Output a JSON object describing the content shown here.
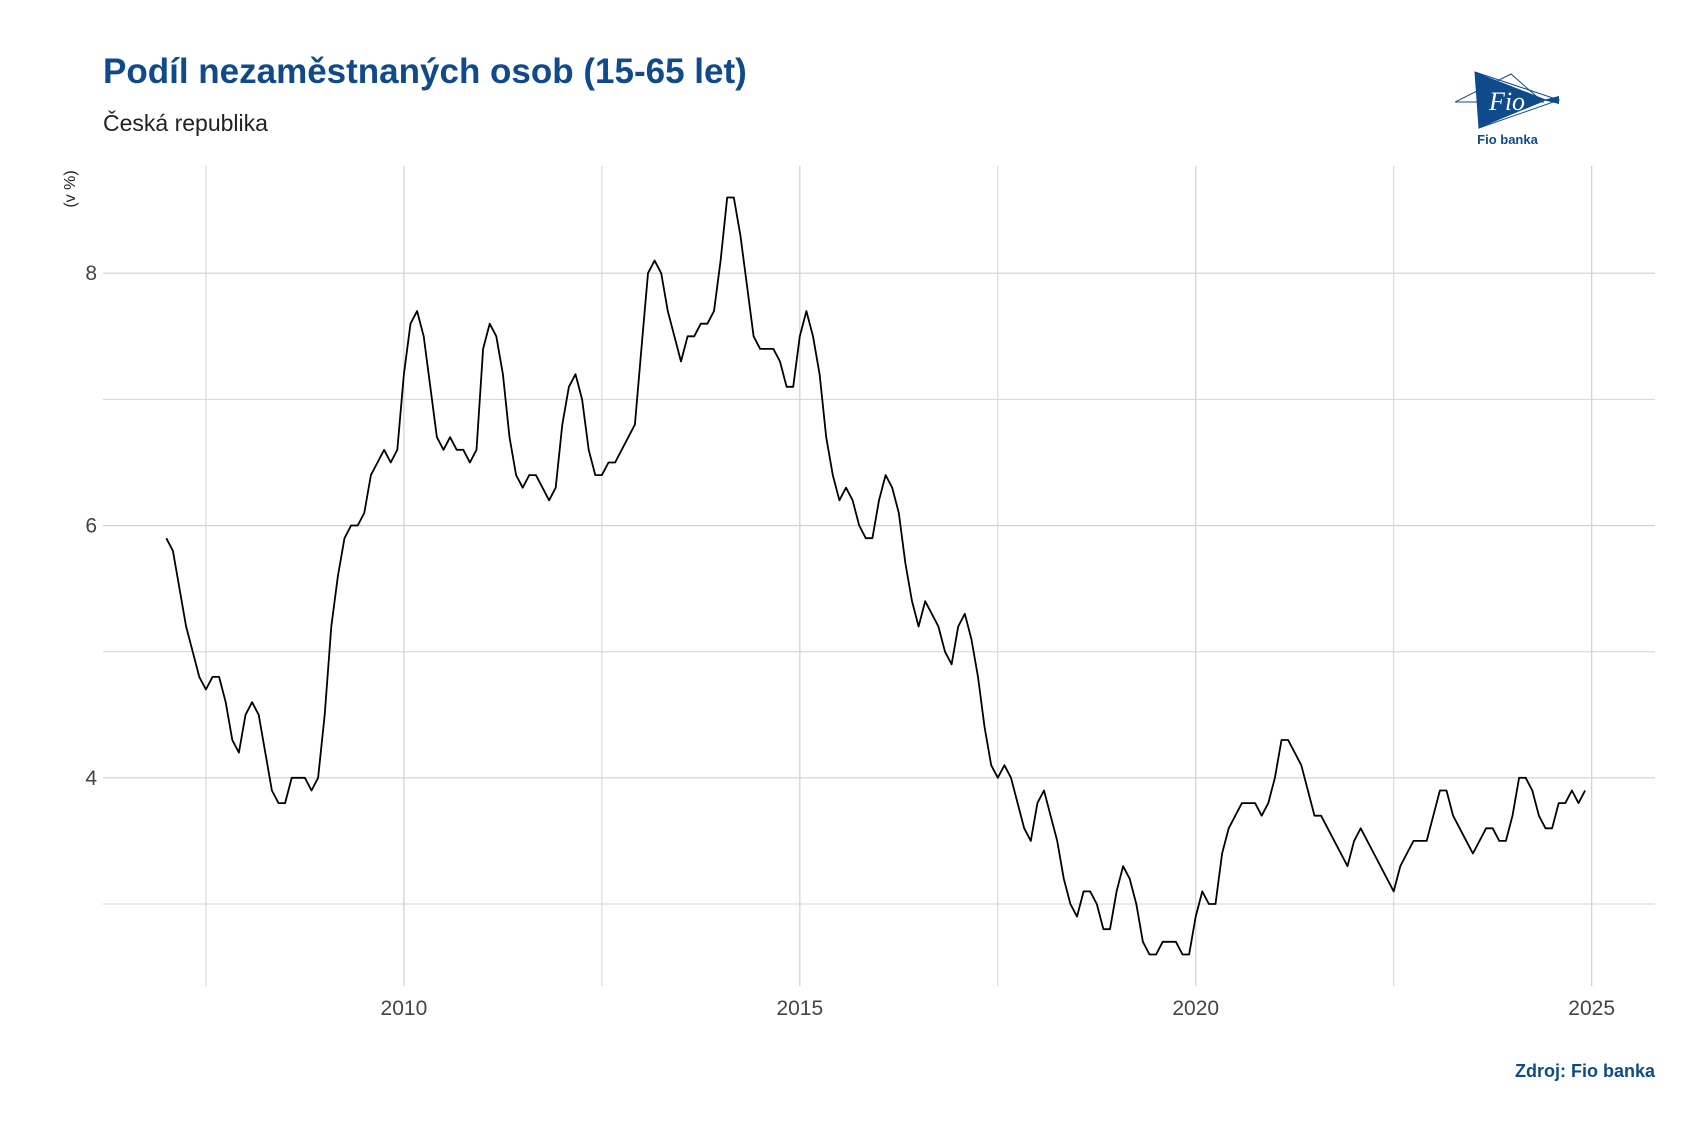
{
  "header": {
    "title": "Podíl nezaměstnaných osob (15-65 let)",
    "subtitle": "Česká republika"
  },
  "logo": {
    "mark_text": "Fio",
    "name": "Fio banka",
    "color": "#0f4a8a"
  },
  "footer": {
    "source": "Zdroj: Fio banka"
  },
  "chart_data": {
    "type": "line",
    "title": "Podíl nezaměstnaných osob (15-65 let)",
    "subtitle": "Česká republika",
    "xlabel": "",
    "ylabel": "(v %)",
    "xlim": [
      2006.2,
      2025.8
    ],
    "ylim": [
      2.35,
      8.85
    ],
    "x_ticks": [
      2010,
      2015,
      2020,
      2025
    ],
    "y_ticks": [
      4,
      6,
      8
    ],
    "grid": true,
    "line_color": "#000000",
    "series": [
      {
        "start_year": 2007.0,
        "step_months": 1,
        "values": [
          5.9,
          5.8,
          5.5,
          5.2,
          5.0,
          4.8,
          4.7,
          4.8,
          4.8,
          4.6,
          4.3,
          4.2,
          4.5,
          4.6,
          4.5,
          4.2,
          3.9,
          3.8,
          3.8,
          4.0,
          4.0,
          4.0,
          3.9,
          4.0,
          4.5,
          5.2,
          5.6,
          5.9,
          6.0,
          6.0,
          6.1,
          6.4,
          6.5,
          6.6,
          6.5,
          6.6,
          7.2,
          7.6,
          7.7,
          7.5,
          7.1,
          6.7,
          6.6,
          6.7,
          6.6,
          6.6,
          6.5,
          6.6,
          7.4,
          7.6,
          7.5,
          7.2,
          6.7,
          6.4,
          6.3,
          6.4,
          6.4,
          6.3,
          6.2,
          6.3,
          6.8,
          7.1,
          7.2,
          7.0,
          6.6,
          6.4,
          6.4,
          6.5,
          6.5,
          6.6,
          6.7,
          6.8,
          7.4,
          8.0,
          8.1,
          8.0,
          7.7,
          7.5,
          7.3,
          7.5,
          7.5,
          7.6,
          7.6,
          7.7,
          8.1,
          8.6,
          8.6,
          8.3,
          7.9,
          7.5,
          7.4,
          7.4,
          7.4,
          7.3,
          7.1,
          7.1,
          7.5,
          7.7,
          7.5,
          7.2,
          6.7,
          6.4,
          6.2,
          6.3,
          6.2,
          6.0,
          5.9,
          5.9,
          6.2,
          6.4,
          6.3,
          6.1,
          5.7,
          5.4,
          5.2,
          5.4,
          5.3,
          5.2,
          5.0,
          4.9,
          5.2,
          5.3,
          5.1,
          4.8,
          4.4,
          4.1,
          4.0,
          4.1,
          4.0,
          3.8,
          3.6,
          3.5,
          3.8,
          3.9,
          3.7,
          3.5,
          3.2,
          3.0,
          2.9,
          3.1,
          3.1,
          3.0,
          2.8,
          2.8,
          3.1,
          3.3,
          3.2,
          3.0,
          2.7,
          2.6,
          2.6,
          2.7,
          2.7,
          2.7,
          2.6,
          2.6,
          2.9,
          3.1,
          3.0,
          3.0,
          3.4,
          3.6,
          3.7,
          3.8,
          3.8,
          3.8,
          3.7,
          3.8,
          4.0,
          4.3,
          4.3,
          4.2,
          4.1,
          3.9,
          3.7,
          3.7,
          3.6,
          3.5,
          3.4,
          3.3,
          3.5,
          3.6,
          3.5,
          3.4,
          3.3,
          3.2,
          3.1,
          3.3,
          3.4,
          3.5,
          3.5,
          3.5,
          3.7,
          3.9,
          3.9,
          3.7,
          3.6,
          3.5,
          3.4,
          3.5,
          3.6,
          3.6,
          3.5,
          3.5,
          3.7,
          4.0,
          4.0,
          3.9,
          3.7,
          3.6,
          3.6,
          3.8,
          3.8,
          3.9,
          3.8,
          3.9
        ]
      }
    ]
  }
}
